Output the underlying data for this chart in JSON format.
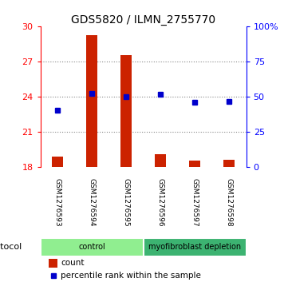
{
  "title": "GDS5820 / ILMN_2755770",
  "samples": [
    "GSM1276593",
    "GSM1276594",
    "GSM1276595",
    "GSM1276596",
    "GSM1276597",
    "GSM1276598"
  ],
  "count_values": [
    18.85,
    29.2,
    27.5,
    19.05,
    18.55,
    18.6
  ],
  "percentile_values": [
    40.0,
    52.0,
    50.0,
    51.5,
    46.0,
    46.5
  ],
  "ymin": 18,
  "ymax": 30,
  "yticks": [
    18,
    21,
    24,
    27,
    30
  ],
  "y2min": 0,
  "y2max": 100,
  "y2ticks": [
    0,
    25,
    50,
    75,
    100
  ],
  "y2labels": [
    "0",
    "25",
    "50",
    "75",
    "100%"
  ],
  "groups": [
    {
      "label": "control",
      "start": 0,
      "end": 3,
      "color": "#90ee90"
    },
    {
      "label": "myofibroblast depletion",
      "start": 3,
      "end": 6,
      "color": "#3cb371"
    }
  ],
  "bar_color": "#cc2200",
  "dot_color": "#0000cc",
  "bar_width": 0.32,
  "dotted_line_color": "#888888",
  "background_color": "#ffffff",
  "sample_label_area_color": "#cccccc",
  "count_label": "count",
  "percentile_label": "percentile rank within the sample",
  "protocol_label": "protocol",
  "title_fontsize": 10,
  "tick_fontsize": 8,
  "legend_fontsize": 7.5,
  "sample_fontsize": 6.5
}
